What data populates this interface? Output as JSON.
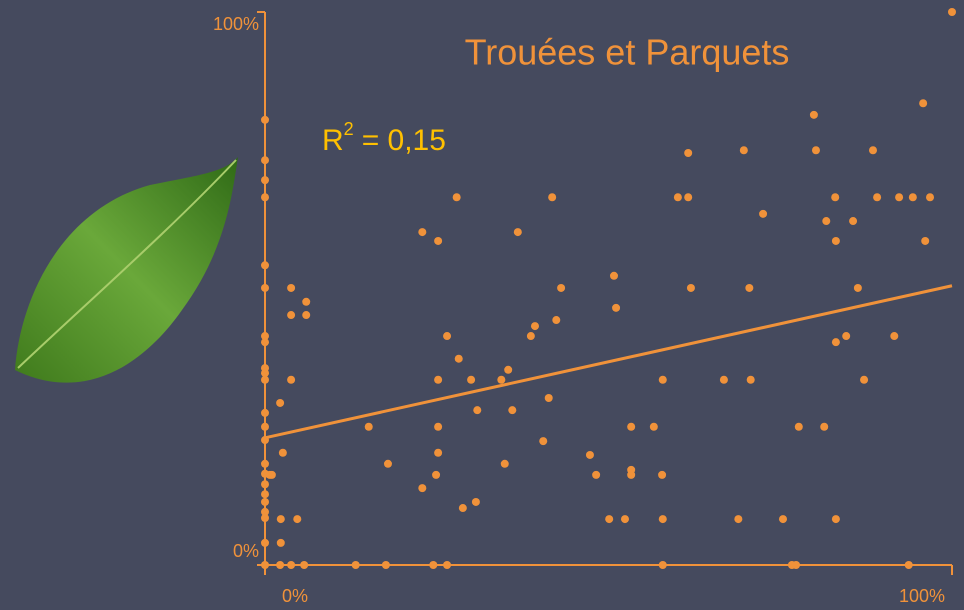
{
  "chart_data": {
    "type": "scatter",
    "title": "Trouées et Parquets",
    "annotation": {
      "text": "R",
      "sup": "2",
      "rest": "=  0,15"
    },
    "color": "#f0923a",
    "annotation_color": "#ffc000",
    "background": "#454a5e",
    "xlim": [
      0,
      100
    ],
    "ylim": [
      0,
      100
    ],
    "xticks": [
      {
        "value": 0,
        "label": "0%"
      },
      {
        "value": 100,
        "label": "100%"
      }
    ],
    "yticks": [
      {
        "value": 0,
        "label": "0%"
      },
      {
        "value": 100,
        "label": "100%"
      }
    ],
    "x": [
      0,
      0,
      0,
      0,
      0,
      0,
      0,
      0,
      0,
      0,
      0,
      0,
      0,
      0,
      0,
      0,
      0,
      0,
      0,
      0,
      0,
      0,
      0,
      0.7,
      1,
      2.2,
      2.6,
      2.3,
      2.3,
      4.7,
      3.8,
      3.8,
      3.8,
      6,
      6,
      2.2,
      3.8,
      5.7,
      13.2,
      17.6,
      24.5,
      26.5,
      57.9,
      76.7,
      77.3,
      93.7,
      15.1,
      17.9,
      22.9,
      22.9,
      25.2,
      25.2,
      25.2,
      25.2,
      24.9,
      26.5,
      27.9,
      28.2,
      28.8,
      30.7,
      30.9,
      30,
      34.9,
      35.4,
      36,
      34.4,
      36.8,
      38.7,
      39.3,
      40.5,
      41.3,
      41.8,
      42.4,
      43.1,
      47.3,
      48.2,
      50.1,
      50.8,
      51.1,
      52.4,
      53.3,
      53.3,
      53.3,
      56.6,
      57.8,
      57.9,
      57.9,
      60.1,
      61.6,
      61.6,
      62,
      66.8,
      68.9,
      69.7,
      70.5,
      70.7,
      72.5,
      75.4,
      77.7,
      79.9,
      80.2,
      81.4,
      81.7,
      83,
      83.1,
      83.1,
      83.1,
      84.6,
      85.6,
      86.3,
      87.2,
      88.5,
      89.1,
      91.6,
      92.3,
      94.3,
      95.8,
      96.1,
      96.8,
      100
    ],
    "values": [
      80.5,
      73.2,
      69.6,
      66.5,
      54.2,
      50.1,
      41.4,
      40.3,
      35.6,
      34.7,
      33.5,
      27.5,
      25,
      22.6,
      18.3,
      16.5,
      14.6,
      12.8,
      11.4,
      9.6,
      8.5,
      4,
      0,
      16.3,
      16.3,
      29.3,
      20.3,
      8.3,
      4,
      8.3,
      33.5,
      50.1,
      45.2,
      47.6,
      45.2,
      0,
      0,
      0,
      0,
      0,
      0,
      0,
      0,
      0,
      0,
      0,
      25,
      18.3,
      60.2,
      13.9,
      58.6,
      33.5,
      25,
      20.3,
      16.3,
      41.4,
      66.5,
      37.3,
      10.3,
      11.4,
      28,
      33.5,
      18.3,
      35.3,
      28,
      33.5,
      60.2,
      41.4,
      43.2,
      22.4,
      30.2,
      66.5,
      44.3,
      50.1,
      19.9,
      16.3,
      8.3,
      52.3,
      46.5,
      8.3,
      25,
      17.2,
      16.3,
      25,
      16.3,
      8.3,
      33.5,
      66.5,
      66.5,
      74.5,
      50.1,
      33.5,
      8.3,
      75,
      50.1,
      33.5,
      63.5,
      8.3,
      25,
      81.4,
      75,
      25,
      62.2,
      66.5,
      8.3,
      58.6,
      40.3,
      41.4,
      62.2,
      50.1,
      33.5,
      75,
      66.5,
      41.4,
      66.5,
      66.5,
      83.5,
      58.6,
      66.5,
      100
    ],
    "trendline": {
      "x": [
        0,
        100
      ],
      "values": [
        23,
        50.5
      ]
    }
  }
}
